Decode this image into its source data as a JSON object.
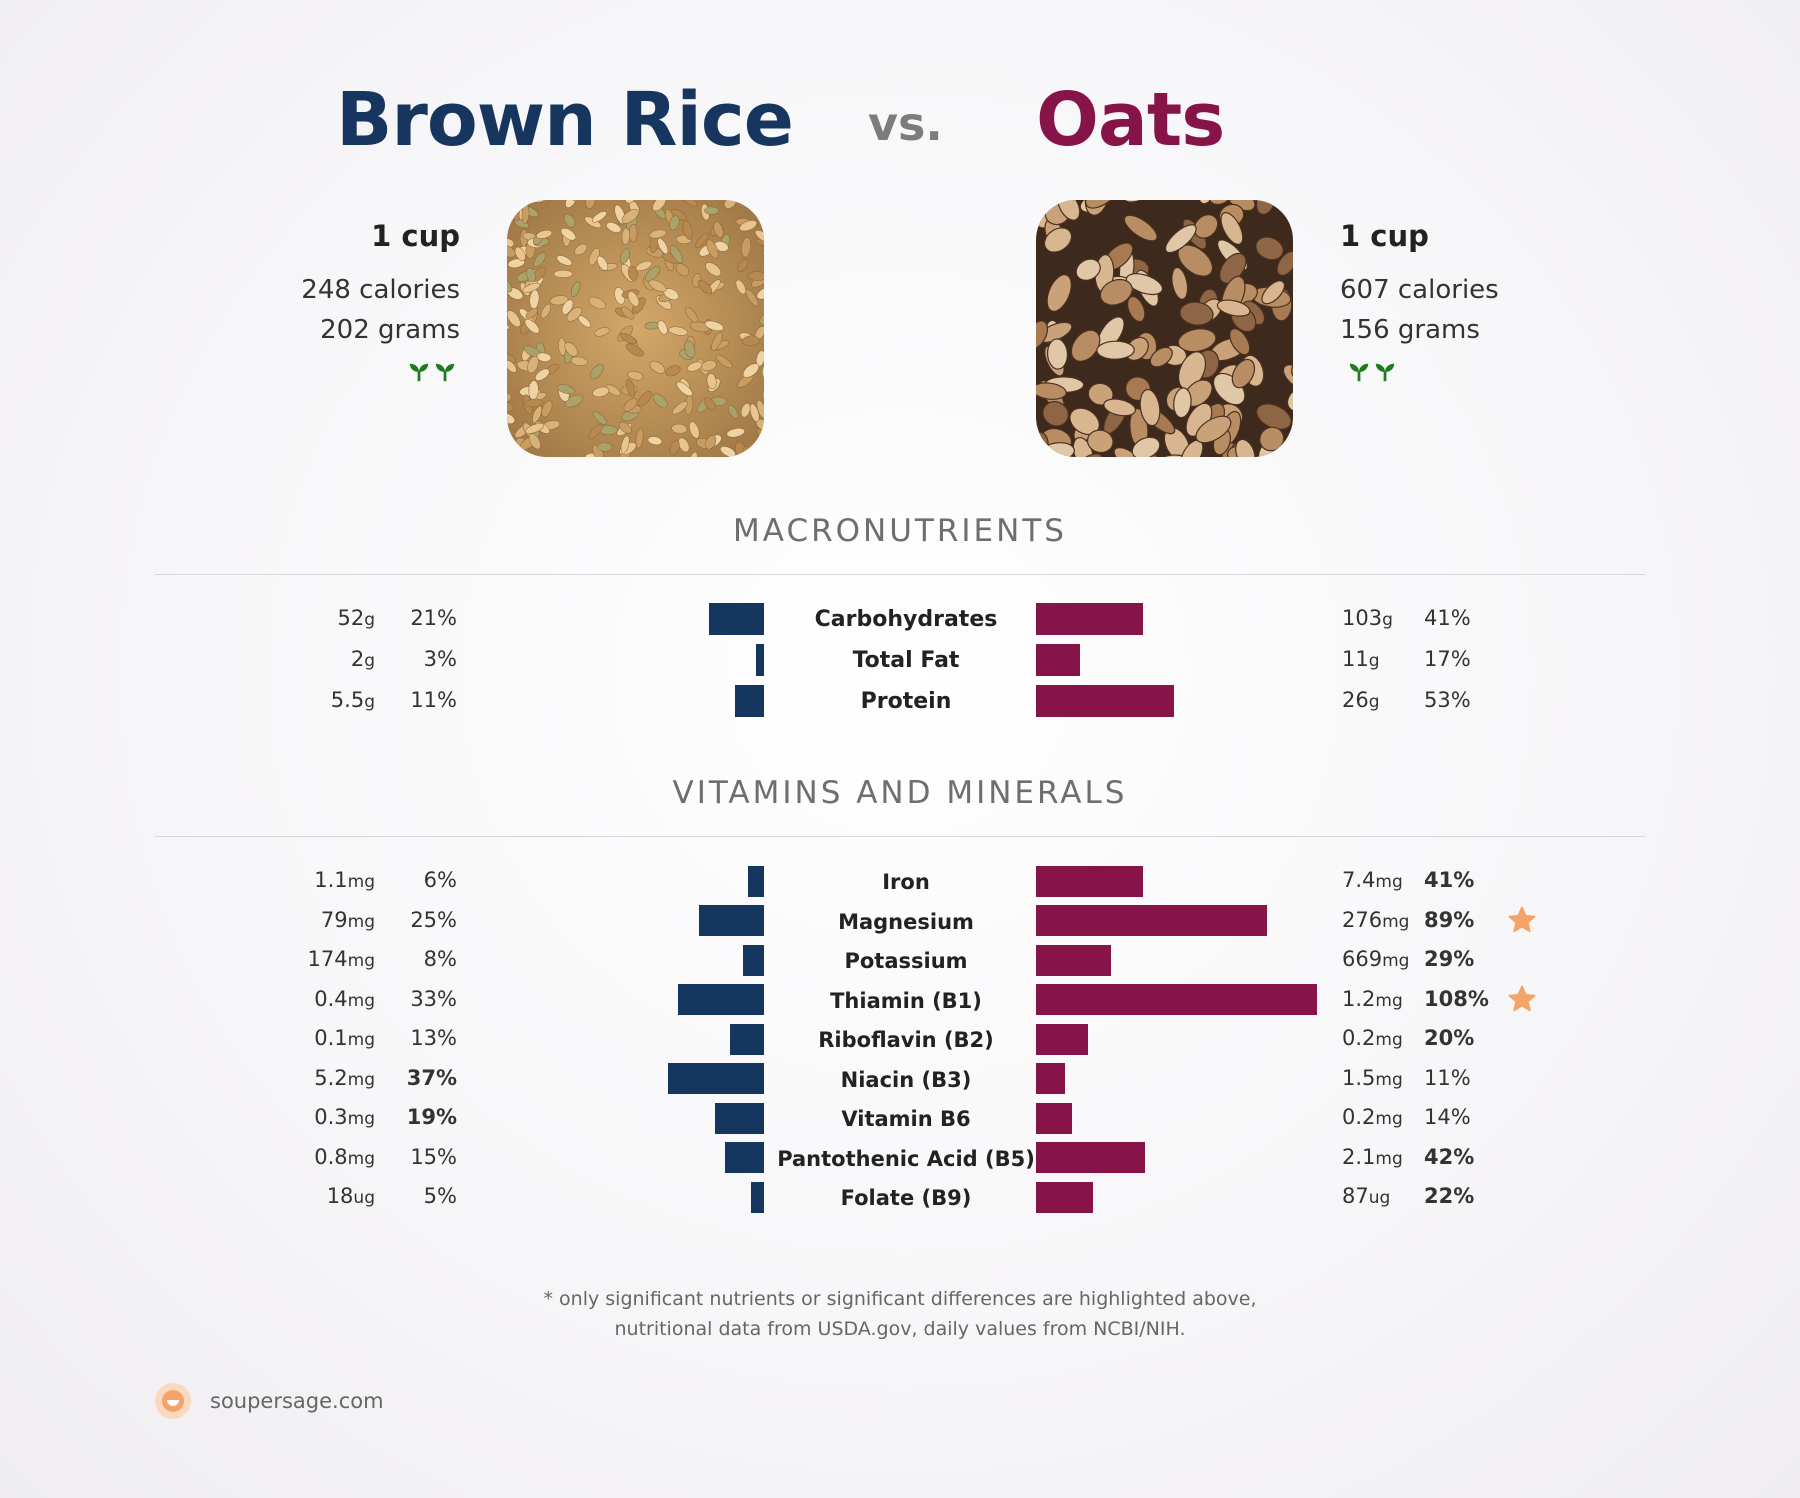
{
  "header": {
    "left_title": "Brown Rice",
    "vs": "vs.",
    "right_title": "Oats"
  },
  "left_food": {
    "serving": "1 cup",
    "calories": "248 calories",
    "weight": "202 grams",
    "badge_icon": "sprout-icon",
    "color": "#15365f"
  },
  "right_food": {
    "serving": "1 cup",
    "calories": "607 calories",
    "weight": "156 grams",
    "badge_icon": "sprout-icon",
    "color": "#871448"
  },
  "sections": {
    "macro_title": "MACRONUTRIENTS",
    "vitamins_title": "VITAMINS AND MINERALS"
  },
  "chart_data": {
    "type": "bar",
    "orientation": "horizontal-diverging",
    "series": [
      {
        "name": "Brown Rice",
        "color": "#15365f"
      },
      {
        "name": "Oats",
        "color": "#871448"
      }
    ],
    "macronutrients": [
      {
        "name": "Carbohydrates",
        "left_amount": "52",
        "left_unit": "g",
        "left_pct": 21,
        "left_bold": false,
        "right_amount": "103",
        "right_unit": "g",
        "right_pct": 41,
        "right_bold": false,
        "star": false
      },
      {
        "name": "Total Fat",
        "left_amount": "2",
        "left_unit": "g",
        "left_pct": 3,
        "left_bold": false,
        "right_amount": "11",
        "right_unit": "g",
        "right_pct": 17,
        "right_bold": false,
        "star": false
      },
      {
        "name": "Protein",
        "left_amount": "5.5",
        "left_unit": "g",
        "left_pct": 11,
        "left_bold": false,
        "right_amount": "26",
        "right_unit": "g",
        "right_pct": 53,
        "right_bold": false,
        "star": false
      }
    ],
    "vitamins_minerals": [
      {
        "name": "Iron",
        "left_amount": "1.1",
        "left_unit": "mg",
        "left_pct": 6,
        "left_bold": false,
        "right_amount": "7.4",
        "right_unit": "mg",
        "right_pct": 41,
        "right_bold": true,
        "star": false
      },
      {
        "name": "Magnesium",
        "left_amount": "79",
        "left_unit": "mg",
        "left_pct": 25,
        "left_bold": false,
        "right_amount": "276",
        "right_unit": "mg",
        "right_pct": 89,
        "right_bold": true,
        "star": true
      },
      {
        "name": "Potassium",
        "left_amount": "174",
        "left_unit": "mg",
        "left_pct": 8,
        "left_bold": false,
        "right_amount": "669",
        "right_unit": "mg",
        "right_pct": 29,
        "right_bold": true,
        "star": false
      },
      {
        "name": "Thiamin (B1)",
        "left_amount": "0.4",
        "left_unit": "mg",
        "left_pct": 33,
        "left_bold": false,
        "right_amount": "1.2",
        "right_unit": "mg",
        "right_pct": 108,
        "right_bold": true,
        "star": true
      },
      {
        "name": "Riboflavin (B2)",
        "left_amount": "0.1",
        "left_unit": "mg",
        "left_pct": 13,
        "left_bold": false,
        "right_amount": "0.2",
        "right_unit": "mg",
        "right_pct": 20,
        "right_bold": true,
        "star": false
      },
      {
        "name": "Niacin (B3)",
        "left_amount": "5.2",
        "left_unit": "mg",
        "left_pct": 37,
        "left_bold": true,
        "right_amount": "1.5",
        "right_unit": "mg",
        "right_pct": 11,
        "right_bold": false,
        "star": false
      },
      {
        "name": "Vitamin B6",
        "left_amount": "0.3",
        "left_unit": "mg",
        "left_pct": 19,
        "left_bold": true,
        "right_amount": "0.2",
        "right_unit": "mg",
        "right_pct": 14,
        "right_bold": false,
        "star": false
      },
      {
        "name": "Pantothenic Acid (B5)",
        "left_amount": "0.8",
        "left_unit": "mg",
        "left_pct": 15,
        "left_bold": false,
        "right_amount": "2.1",
        "right_unit": "mg",
        "right_pct": 42,
        "right_bold": true,
        "star": false
      },
      {
        "name": "Folate (B9)",
        "left_amount": "18",
        "left_unit": "ug",
        "left_pct": 5,
        "left_bold": false,
        "right_amount": "87",
        "right_unit": "ug",
        "right_pct": 22,
        "right_bold": true,
        "star": false
      }
    ],
    "pct_suffix": "%",
    "star_icon": "star-icon",
    "star_color": "#f4a469"
  },
  "footer": {
    "note_line1": "* only significant nutrients or significant differences are highlighted above,",
    "note_line2": "nutritional data from USDA.gov, daily values from NCBI/NIH.",
    "brand": "soupersage.com"
  }
}
